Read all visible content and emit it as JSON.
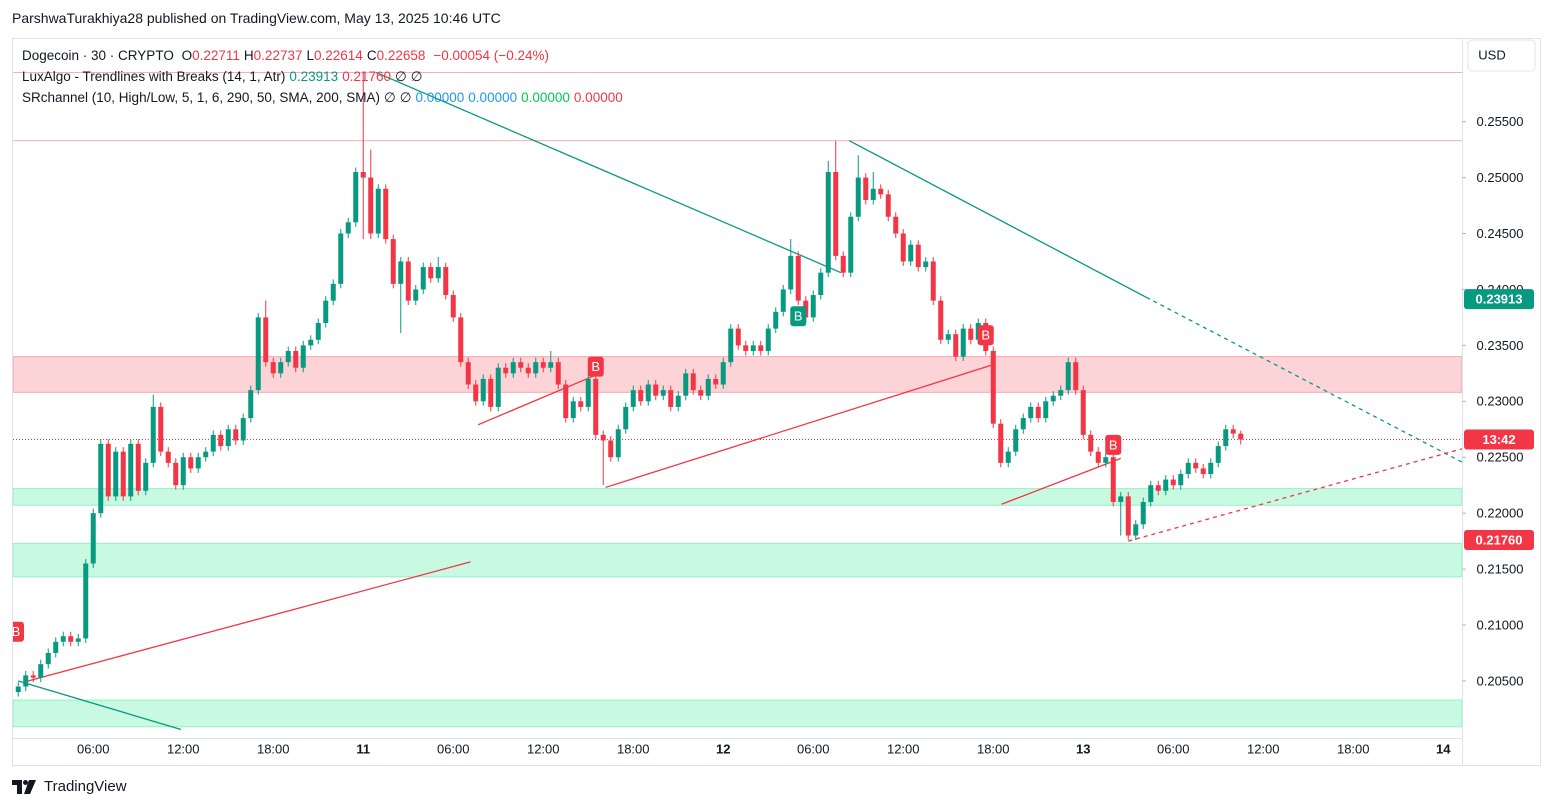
{
  "header": {
    "publisher": "ParshwaTurakhiya28 published on TradingView.com, May 13, 2025 10:46 UTC"
  },
  "footer": {
    "brand": "TradingView"
  },
  "chart_data": {
    "type": "candlestick",
    "symbol": "Dogecoin · 30 · CRYPTO",
    "ohlc_letters": [
      "O",
      "H",
      "L",
      "C"
    ],
    "change": "−0.00054 (−0.24%)",
    "currency": "USD",
    "up_color": "#089981",
    "down_color": "#f23645",
    "indicators": [
      {
        "name": "LuxAlgo - Trendlines with Breaks (14, 1, Atr)",
        "values": [
          {
            "value": 0.23913,
            "label": "0.23913",
            "color": "#089981"
          },
          {
            "value": 0.2176,
            "label": "0.21760",
            "color": "#f23645"
          }
        ],
        "nulls": [
          "∅",
          "∅"
        ]
      },
      {
        "name": "SRchannel (10, High/Low, 5, 1, 6, 290, 50, SMA, 200, SMA)",
        "nulls": [
          "∅",
          "∅"
        ],
        "values": [
          {
            "value": 0,
            "label": "0.00000",
            "color": "#2196f3"
          },
          {
            "value": 0,
            "label": "0.00000",
            "color": "#2196f3"
          },
          {
            "value": 0,
            "label": "0.00000",
            "color": "#00c853"
          },
          {
            "value": 0,
            "label": "0.00000",
            "color": "#f23645"
          }
        ]
      }
    ],
    "countdown": "13:42",
    "xlim": [
      -0.7,
      192.5
    ],
    "xticks": [
      {
        "value": 10,
        "label": "06:00"
      },
      {
        "value": 22,
        "label": "12:00"
      },
      {
        "value": 34,
        "label": "18:00"
      },
      {
        "value": 46,
        "label": "11"
      },
      {
        "value": 58,
        "label": "06:00"
      },
      {
        "value": 70,
        "label": "12:00"
      },
      {
        "value": 82,
        "label": "18:00"
      },
      {
        "value": 94,
        "label": "12"
      },
      {
        "value": 106,
        "label": "06:00"
      },
      {
        "value": 118,
        "label": "12:00"
      },
      {
        "value": 130,
        "label": "18:00"
      },
      {
        "value": 142,
        "label": "13"
      },
      {
        "value": 154,
        "label": "06:00"
      },
      {
        "value": 166,
        "label": "12:00"
      },
      {
        "value": 178,
        "label": "18:00"
      },
      {
        "value": 190,
        "label": "14"
      }
    ],
    "ylim": [
      0.1999,
      0.2623
    ],
    "yticks": [
      {
        "value": 0.205,
        "label": "0.20500"
      },
      {
        "value": 0.21,
        "label": "0.21000"
      },
      {
        "value": 0.215,
        "label": "0.21500"
      },
      {
        "value": 0.22,
        "label": "0.22000"
      },
      {
        "value": 0.225,
        "label": "0.22500"
      },
      {
        "value": 0.23,
        "label": "0.23000"
      },
      {
        "value": 0.235,
        "label": "0.23500"
      },
      {
        "value": 0.24,
        "label": "0.24000"
      },
      {
        "value": 0.245,
        "label": "0.24500"
      },
      {
        "value": 0.25,
        "label": "0.25000"
      },
      {
        "value": 0.255,
        "label": "0.25500"
      }
    ],
    "zones": [
      {
        "top": 0.234,
        "bottom": 0.2308,
        "color": "#f23645"
      },
      {
        "top": 0.2222,
        "bottom": 0.2207,
        "color": "#00e676"
      },
      {
        "top": 0.2173,
        "bottom": 0.2143,
        "color": "#00e676"
      },
      {
        "top": 0.2033,
        "bottom": 0.2009,
        "color": "#00e676"
      }
    ],
    "levels": [
      0.2594,
      0.2533
    ],
    "trendlines": [
      {
        "from": [
          0,
          0.205
        ],
        "to": [
          21.7,
          0.20066
        ],
        "color": "#089981",
        "dashed": false
      },
      {
        "from": [
          47.7,
          0.2594
        ],
        "to": [
          109.7,
          0.2415
        ],
        "color": "#089981",
        "dashed": false
      },
      {
        "from": [
          110.8,
          0.2533
        ],
        "to": [
          150.4,
          0.2393
        ],
        "color": "#089981",
        "dashed": false
      },
      {
        "from": [
          150.4,
          0.2393
        ],
        "to": [
          194.4,
          0.2239
        ],
        "color": "#089981",
        "dashed": true
      },
      {
        "from": [
          1.3,
          0.205
        ],
        "to": [
          60.3,
          0.21564
        ],
        "color": "#f23645",
        "dashed": false
      },
      {
        "from": [
          61.3,
          0.2279
        ],
        "to": [
          77.2,
          0.2324
        ],
        "color": "#f23645",
        "dashed": false
      },
      {
        "from": [
          78.3,
          0.2223
        ],
        "to": [
          130.1,
          0.2333
        ],
        "color": "#f23645",
        "dashed": false
      },
      {
        "from": [
          131.1,
          0.2208
        ],
        "to": [
          147,
          0.2249
        ],
        "color": "#f23645",
        "dashed": false
      },
      {
        "from": [
          148,
          0.2175
        ],
        "to": [
          194.4,
          0.2261
        ],
        "color": "#f23645",
        "dashed": true
      }
    ],
    "markers": [
      {
        "index": -0.3,
        "price": 0.2094,
        "label": "B",
        "color": "#f23645"
      },
      {
        "index": 77,
        "price": 0.2331,
        "label": "B",
        "color": "#f23645"
      },
      {
        "index": 104,
        "price": 0.2376,
        "label": "B",
        "color": "#089981"
      },
      {
        "index": 129,
        "price": 0.2359,
        "label": "B",
        "color": "#f23645"
      },
      {
        "index": 146,
        "price": 0.2261,
        "label": "B",
        "color": "#f23645"
      }
    ],
    "candles": [
      [
        0.204,
        0.2049,
        0.2036,
        0.2045
      ],
      [
        0.2045,
        0.2059,
        0.2041,
        0.2055
      ],
      [
        0.2055,
        0.2059,
        0.2049,
        0.2053
      ],
      [
        0.2053,
        0.2069,
        0.2049,
        0.2065
      ],
      [
        0.2065,
        0.2079,
        0.2061,
        0.2075
      ],
      [
        0.2075,
        0.2089,
        0.2071,
        0.2085
      ],
      [
        0.2085,
        0.2094,
        0.2081,
        0.209
      ],
      [
        0.209,
        0.2094,
        0.2081,
        0.2085
      ],
      [
        0.2085,
        0.2092,
        0.2081,
        0.2088
      ],
      [
        0.2088,
        0.2159,
        0.2084,
        0.2155
      ],
      [
        0.2155,
        0.2204,
        0.2151,
        0.22
      ],
      [
        0.22,
        0.2266,
        0.2196,
        0.2262
      ],
      [
        0.2262,
        0.2266,
        0.2211,
        0.2215
      ],
      [
        0.2215,
        0.2259,
        0.2211,
        0.2255
      ],
      [
        0.2255,
        0.2259,
        0.2211,
        0.2215
      ],
      [
        0.2215,
        0.2266,
        0.2211,
        0.2262
      ],
      [
        0.2262,
        0.2266,
        0.2216,
        0.222
      ],
      [
        0.222,
        0.2249,
        0.2216,
        0.2245
      ],
      [
        0.2245,
        0.2306,
        0.2241,
        0.2295
      ],
      [
        0.2295,
        0.2299,
        0.2251,
        0.2255
      ],
      [
        0.2255,
        0.2259,
        0.2241,
        0.2245
      ],
      [
        0.2245,
        0.2249,
        0.2221,
        0.2225
      ],
      [
        0.2225,
        0.2254,
        0.2221,
        0.225
      ],
      [
        0.225,
        0.2254,
        0.2236,
        0.224
      ],
      [
        0.224,
        0.2254,
        0.2236,
        0.225
      ],
      [
        0.225,
        0.2259,
        0.2246,
        0.2255
      ],
      [
        0.2255,
        0.2274,
        0.2251,
        0.227
      ],
      [
        0.227,
        0.2274,
        0.2256,
        0.226
      ],
      [
        0.226,
        0.2279,
        0.2256,
        0.2275
      ],
      [
        0.2275,
        0.2279,
        0.2261,
        0.2265
      ],
      [
        0.2265,
        0.2289,
        0.2261,
        0.2285
      ],
      [
        0.2285,
        0.2314,
        0.2281,
        0.231
      ],
      [
        0.231,
        0.2379,
        0.2306,
        0.2375
      ],
      [
        0.2375,
        0.239,
        0.2331,
        0.2335
      ],
      [
        0.2335,
        0.2339,
        0.2321,
        0.2325
      ],
      [
        0.2325,
        0.2339,
        0.2321,
        0.2335
      ],
      [
        0.2335,
        0.2349,
        0.2331,
        0.2345
      ],
      [
        0.2345,
        0.2349,
        0.2326,
        0.233
      ],
      [
        0.233,
        0.2354,
        0.2326,
        0.235
      ],
      [
        0.235,
        0.2359,
        0.2346,
        0.2355
      ],
      [
        0.2355,
        0.2374,
        0.2351,
        0.237
      ],
      [
        0.237,
        0.2394,
        0.2366,
        0.239
      ],
      [
        0.239,
        0.2409,
        0.2386,
        0.2405
      ],
      [
        0.2405,
        0.2454,
        0.2401,
        0.245
      ],
      [
        0.245,
        0.2464,
        0.2446,
        0.246
      ],
      [
        0.246,
        0.2509,
        0.2456,
        0.2505
      ],
      [
        0.2505,
        0.2595,
        0.2445,
        0.25
      ],
      [
        0.25,
        0.2525,
        0.2445,
        0.245
      ],
      [
        0.245,
        0.2494,
        0.2446,
        0.249
      ],
      [
        0.249,
        0.2494,
        0.2441,
        0.2445
      ],
      [
        0.2445,
        0.2449,
        0.2401,
        0.2405
      ],
      [
        0.2405,
        0.2429,
        0.2361,
        0.2425
      ],
      [
        0.2425,
        0.2429,
        0.2386,
        0.239
      ],
      [
        0.239,
        0.2404,
        0.2386,
        0.24
      ],
      [
        0.24,
        0.2424,
        0.2396,
        0.242
      ],
      [
        0.242,
        0.2424,
        0.2406,
        0.241
      ],
      [
        0.241,
        0.2429,
        0.2406,
        0.242
      ],
      [
        0.242,
        0.2424,
        0.2391,
        0.2395
      ],
      [
        0.2395,
        0.2399,
        0.2371,
        0.2375
      ],
      [
        0.2375,
        0.2379,
        0.2331,
        0.2335
      ],
      [
        0.2335,
        0.2339,
        0.2311,
        0.2315
      ],
      [
        0.2315,
        0.2319,
        0.2296,
        0.23
      ],
      [
        0.23,
        0.2324,
        0.2296,
        0.232
      ],
      [
        0.232,
        0.2324,
        0.2291,
        0.2295
      ],
      [
        0.2295,
        0.2334,
        0.2291,
        0.233
      ],
      [
        0.233,
        0.2334,
        0.2321,
        0.2325
      ],
      [
        0.2325,
        0.2339,
        0.2321,
        0.2335
      ],
      [
        0.2335,
        0.2339,
        0.2326,
        0.233
      ],
      [
        0.233,
        0.2334,
        0.2321,
        0.2325
      ],
      [
        0.2325,
        0.2339,
        0.2321,
        0.2335
      ],
      [
        0.2335,
        0.2339,
        0.2326,
        0.233
      ],
      [
        0.233,
        0.2345,
        0.2326,
        0.2335
      ],
      [
        0.2335,
        0.2339,
        0.2311,
        0.2315
      ],
      [
        0.2315,
        0.2319,
        0.2281,
        0.2285
      ],
      [
        0.2285,
        0.2304,
        0.2281,
        0.23
      ],
      [
        0.23,
        0.2304,
        0.2291,
        0.2295
      ],
      [
        0.2295,
        0.2324,
        0.2291,
        0.232
      ],
      [
        0.232,
        0.2324,
        0.2266,
        0.227
      ],
      [
        0.227,
        0.2274,
        0.2225,
        0.2265
      ],
      [
        0.2265,
        0.2269,
        0.2246,
        0.225
      ],
      [
        0.225,
        0.2279,
        0.2246,
        0.2275
      ],
      [
        0.2275,
        0.2299,
        0.2271,
        0.2295
      ],
      [
        0.2295,
        0.2314,
        0.2291,
        0.231
      ],
      [
        0.231,
        0.2314,
        0.2296,
        0.23
      ],
      [
        0.23,
        0.2319,
        0.2296,
        0.2315
      ],
      [
        0.2315,
        0.2319,
        0.2301,
        0.2305
      ],
      [
        0.2305,
        0.2314,
        0.2301,
        0.231
      ],
      [
        0.231,
        0.2314,
        0.2291,
        0.2295
      ],
      [
        0.2295,
        0.2309,
        0.2291,
        0.2305
      ],
      [
        0.2305,
        0.2329,
        0.2301,
        0.2325
      ],
      [
        0.2325,
        0.2329,
        0.2306,
        0.231
      ],
      [
        0.231,
        0.2314,
        0.2301,
        0.2305
      ],
      [
        0.2305,
        0.2324,
        0.2301,
        0.232
      ],
      [
        0.232,
        0.2324,
        0.2311,
        0.2315
      ],
      [
        0.2315,
        0.2339,
        0.2311,
        0.2335
      ],
      [
        0.2335,
        0.2369,
        0.2331,
        0.2365
      ],
      [
        0.2365,
        0.2369,
        0.2346,
        0.235
      ],
      [
        0.235,
        0.2354,
        0.2341,
        0.2345
      ],
      [
        0.2345,
        0.2354,
        0.2341,
        0.235
      ],
      [
        0.235,
        0.2354,
        0.2341,
        0.2345
      ],
      [
        0.2345,
        0.2369,
        0.2341,
        0.2365
      ],
      [
        0.2365,
        0.2384,
        0.2361,
        0.238
      ],
      [
        0.238,
        0.2404,
        0.2376,
        0.24
      ],
      [
        0.24,
        0.2445,
        0.2396,
        0.243
      ],
      [
        0.243,
        0.2434,
        0.2386,
        0.239
      ],
      [
        0.239,
        0.2394,
        0.2371,
        0.2375
      ],
      [
        0.2375,
        0.2399,
        0.2371,
        0.2395
      ],
      [
        0.2395,
        0.2419,
        0.2391,
        0.2415
      ],
      [
        0.2415,
        0.2515,
        0.2411,
        0.2505
      ],
      [
        0.2505,
        0.2533,
        0.2426,
        0.243
      ],
      [
        0.243,
        0.2434,
        0.2411,
        0.2415
      ],
      [
        0.2415,
        0.2469,
        0.2411,
        0.2465
      ],
      [
        0.2465,
        0.252,
        0.2461,
        0.25
      ],
      [
        0.25,
        0.2504,
        0.2476,
        0.248
      ],
      [
        0.248,
        0.2505,
        0.2476,
        0.249
      ],
      [
        0.249,
        0.2494,
        0.2481,
        0.2485
      ],
      [
        0.2485,
        0.2489,
        0.2461,
        0.2465
      ],
      [
        0.2465,
        0.2469,
        0.2446,
        0.245
      ],
      [
        0.245,
        0.2454,
        0.2421,
        0.2425
      ],
      [
        0.2425,
        0.2444,
        0.2421,
        0.244
      ],
      [
        0.244,
        0.2444,
        0.2416,
        0.242
      ],
      [
        0.242,
        0.2429,
        0.2416,
        0.2425
      ],
      [
        0.2425,
        0.2429,
        0.2386,
        0.239
      ],
      [
        0.239,
        0.2394,
        0.2351,
        0.2355
      ],
      [
        0.2355,
        0.2364,
        0.2351,
        0.236
      ],
      [
        0.236,
        0.2364,
        0.2336,
        0.234
      ],
      [
        0.234,
        0.2369,
        0.2336,
        0.2365
      ],
      [
        0.2365,
        0.2369,
        0.2351,
        0.2355
      ],
      [
        0.2355,
        0.2374,
        0.2351,
        0.237
      ],
      [
        0.237,
        0.2374,
        0.2341,
        0.2345
      ],
      [
        0.2345,
        0.2349,
        0.2276,
        0.228
      ],
      [
        0.228,
        0.2284,
        0.2241,
        0.2245
      ],
      [
        0.2245,
        0.2259,
        0.2241,
        0.2255
      ],
      [
        0.2255,
        0.2279,
        0.2251,
        0.2275
      ],
      [
        0.2275,
        0.2289,
        0.2271,
        0.2285
      ],
      [
        0.2285,
        0.2299,
        0.2281,
        0.2295
      ],
      [
        0.2295,
        0.2299,
        0.2281,
        0.2285
      ],
      [
        0.2285,
        0.2304,
        0.2281,
        0.23
      ],
      [
        0.23,
        0.2309,
        0.2296,
        0.2305
      ],
      [
        0.2305,
        0.2314,
        0.2301,
        0.231
      ],
      [
        0.231,
        0.2339,
        0.2306,
        0.2335
      ],
      [
        0.2335,
        0.2339,
        0.2306,
        0.231
      ],
      [
        0.231,
        0.2314,
        0.2266,
        0.227
      ],
      [
        0.227,
        0.2274,
        0.2251,
        0.2255
      ],
      [
        0.2255,
        0.2259,
        0.2241,
        0.2245
      ],
      [
        0.2245,
        0.2254,
        0.2241,
        0.225
      ],
      [
        0.225,
        0.2254,
        0.2206,
        0.221
      ],
      [
        0.221,
        0.2219,
        0.218,
        0.2215
      ],
      [
        0.2215,
        0.2219,
        0.2176,
        0.218
      ],
      [
        0.218,
        0.2194,
        0.2176,
        0.219
      ],
      [
        0.219,
        0.2214,
        0.2186,
        0.221
      ],
      [
        0.221,
        0.2229,
        0.2206,
        0.2225
      ],
      [
        0.2225,
        0.2229,
        0.2216,
        0.222
      ],
      [
        0.222,
        0.2234,
        0.2216,
        0.223
      ],
      [
        0.223,
        0.2234,
        0.2221,
        0.2225
      ],
      [
        0.2225,
        0.2239,
        0.2221,
        0.2235
      ],
      [
        0.2235,
        0.2249,
        0.2231,
        0.2245
      ],
      [
        0.2245,
        0.2249,
        0.2236,
        0.224
      ],
      [
        0.224,
        0.2244,
        0.2231,
        0.2235
      ],
      [
        0.2235,
        0.2249,
        0.2231,
        0.2245
      ],
      [
        0.2245,
        0.2264,
        0.2241,
        0.226
      ],
      [
        0.226,
        0.2279,
        0.2256,
        0.2275
      ],
      [
        0.2275,
        0.2279,
        0.2267,
        0.22711
      ],
      [
        0.22711,
        0.22737,
        0.22614,
        0.22658
      ]
    ]
  }
}
